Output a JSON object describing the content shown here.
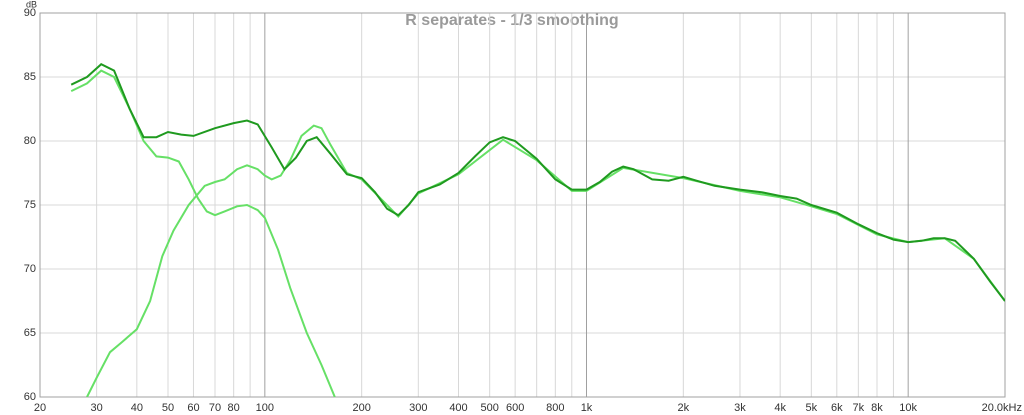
{
  "chart_data": {
    "type": "line",
    "title": "R separates - 1/3 smoothing",
    "y_label": "dB",
    "log_x": true,
    "grid": true,
    "xlim": [
      20,
      20000
    ],
    "ylim": [
      60,
      90
    ],
    "xticks": [
      20,
      30,
      40,
      50,
      60,
      70,
      80,
      100,
      200,
      300,
      400,
      500,
      600,
      800,
      {
        "value": 1000,
        "label": "1k"
      },
      {
        "value": 2000,
        "label": "2k"
      },
      {
        "value": 3000,
        "label": "3k"
      },
      {
        "value": 4000,
        "label": "4k"
      },
      {
        "value": 5000,
        "label": "5k"
      },
      {
        "value": 6000,
        "label": "6k"
      },
      {
        "value": 7000,
        "label": "7k"
      },
      {
        "value": 8000,
        "label": "8k"
      },
      {
        "value": 10000,
        "label": "10k"
      },
      {
        "value": 20000,
        "label": "20.0kHz"
      }
    ],
    "xminor": [
      90,
      700,
      900,
      9000
    ],
    "yticks": [
      60,
      65,
      70,
      75,
      80,
      85,
      90
    ],
    "series": [
      {
        "color": "#66e066",
        "x": [
          25,
          28,
          31,
          34,
          38,
          42,
          46,
          50,
          54,
          58,
          62,
          66,
          70,
          75,
          82,
          88,
          95,
          100,
          110,
          120,
          135,
          150,
          165
        ],
        "values": [
          83.9,
          84.5,
          85.5,
          85,
          82.5,
          80,
          78.8,
          78.7,
          78.4,
          77,
          75.5,
          74.5,
          74.2,
          74.5,
          74.9,
          75,
          74.6,
          74,
          71.5,
          68.5,
          65,
          62.5,
          60
        ]
      },
      {
        "color": "#66e066",
        "x": [
          28,
          30,
          33,
          36,
          40,
          44,
          48,
          52,
          58,
          65,
          70,
          75,
          82,
          88,
          95,
          100,
          105,
          112,
          120,
          130,
          142,
          150,
          160,
          180,
          200,
          260,
          300,
          400,
          550,
          700,
          900,
          1000,
          1300,
          2000,
          3000,
          4000,
          5000,
          6000,
          8000,
          10000,
          13000,
          16000,
          20000
        ],
        "values": [
          60,
          61.5,
          63.5,
          64.3,
          65.3,
          67.5,
          71,
          73,
          75,
          76.5,
          76.8,
          77,
          77.8,
          78.1,
          77.8,
          77.3,
          77,
          77.3,
          78.5,
          80.4,
          81.2,
          81,
          79.7,
          77.5,
          77,
          74.1,
          75.9,
          77.4,
          80.1,
          78.5,
          76.1,
          76.1,
          77.9,
          77.1,
          76.1,
          75.6,
          74.9,
          74.3,
          72.7,
          72.1,
          72.4,
          70.8,
          67.5
        ]
      },
      {
        "color": "#1f9a1f",
        "x": [
          25,
          28,
          31,
          34,
          38,
          42,
          46,
          50,
          55,
          60,
          70,
          80,
          88,
          95,
          105,
          115,
          125,
          135,
          145,
          160,
          180,
          200,
          220,
          240,
          260,
          280,
          300,
          350,
          400,
          450,
          500,
          550,
          600,
          700,
          800,
          900,
          1000,
          1100,
          1200,
          1300,
          1400,
          1600,
          1800,
          2000,
          2200,
          2500,
          3000,
          3500,
          4000,
          4500,
          5000,
          6000,
          7000,
          8000,
          9000,
          10000,
          11000,
          12000,
          13000,
          14000,
          16000,
          18000,
          20000
        ],
        "values": [
          84.4,
          85,
          86,
          85.5,
          82.5,
          80.3,
          80.3,
          80.7,
          80.5,
          80.4,
          81,
          81.4,
          81.6,
          81.3,
          79.5,
          77.8,
          78.7,
          80,
          80.3,
          79,
          77.4,
          77.1,
          76,
          74.7,
          74.2,
          75,
          76,
          76.6,
          77.5,
          78.8,
          79.9,
          80.3,
          80,
          78.6,
          77,
          76.2,
          76.2,
          76.8,
          77.6,
          78,
          77.8,
          77,
          76.9,
          77.2,
          76.9,
          76.5,
          76.2,
          76,
          75.7,
          75.5,
          75,
          74.4,
          73.5,
          72.8,
          72.3,
          72.1,
          72.2,
          72.4,
          72.4,
          72.2,
          70.8,
          69,
          67.5
        ]
      }
    ]
  }
}
